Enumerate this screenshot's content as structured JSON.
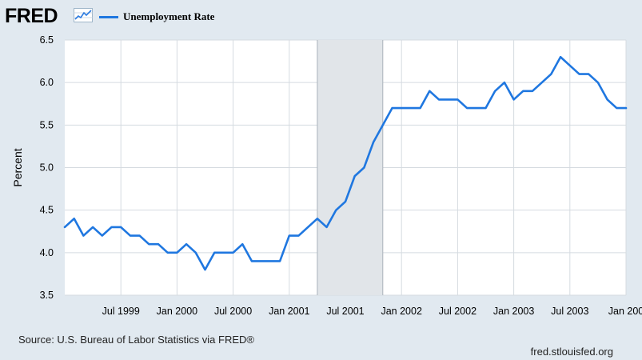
{
  "branding": {
    "logo_text": "FRED",
    "logo_icon": "trend-graph-icon"
  },
  "legend": {
    "series_name": "Unemployment Rate",
    "color": "#1f77e0"
  },
  "footer": {
    "source": "Source: U.S. Bureau of Labor Statistics via FRED®",
    "site": "fred.stlouisfed.org"
  },
  "chart_data": {
    "type": "line",
    "ylabel": "Percent",
    "ylim": [
      3.5,
      6.5
    ],
    "yticks": [
      3.5,
      4.0,
      4.5,
      5.0,
      5.5,
      6.0,
      6.5
    ],
    "ytick_labels": [
      "3.5",
      "4.0",
      "4.5",
      "5.0",
      "5.5",
      "6.0",
      "6.5"
    ],
    "x_range": [
      "1999-01",
      "2004-01"
    ],
    "xticks": [
      {
        "date": "1999-07",
        "label": "Jul 1999"
      },
      {
        "date": "2000-01",
        "label": "Jan 2000"
      },
      {
        "date": "2000-07",
        "label": "Jul 2000"
      },
      {
        "date": "2001-01",
        "label": "Jan 2001"
      },
      {
        "date": "2001-07",
        "label": "Jul 2001"
      },
      {
        "date": "2002-01",
        "label": "Jan 2002"
      },
      {
        "date": "2002-07",
        "label": "Jul 2002"
      },
      {
        "date": "2003-01",
        "label": "Jan 2003"
      },
      {
        "date": "2003-07",
        "label": "Jul 2003"
      },
      {
        "date": "2004-01",
        "label": "Jan 200"
      }
    ],
    "recession": {
      "start": "2001-04",
      "end": "2001-11",
      "color": "#e1e5e9"
    },
    "grid": true,
    "series": [
      {
        "name": "Unemployment Rate",
        "color": "#1f77e0",
        "x": [
          "1999-01",
          "1999-02",
          "1999-03",
          "1999-04",
          "1999-05",
          "1999-06",
          "1999-07",
          "1999-08",
          "1999-09",
          "1999-10",
          "1999-11",
          "1999-12",
          "2000-01",
          "2000-02",
          "2000-03",
          "2000-04",
          "2000-05",
          "2000-06",
          "2000-07",
          "2000-08",
          "2000-09",
          "2000-10",
          "2000-11",
          "2000-12",
          "2001-01",
          "2001-02",
          "2001-03",
          "2001-04",
          "2001-05",
          "2001-06",
          "2001-07",
          "2001-08",
          "2001-09",
          "2001-10",
          "2001-11",
          "2001-12",
          "2002-01",
          "2002-02",
          "2002-03",
          "2002-04",
          "2002-05",
          "2002-06",
          "2002-07",
          "2002-08",
          "2002-09",
          "2002-10",
          "2002-11",
          "2002-12",
          "2003-01",
          "2003-02",
          "2003-03",
          "2003-04",
          "2003-05",
          "2003-06",
          "2003-07",
          "2003-08",
          "2003-09",
          "2003-10",
          "2003-11",
          "2003-12",
          "2004-01"
        ],
        "values": [
          4.3,
          4.4,
          4.2,
          4.3,
          4.2,
          4.3,
          4.3,
          4.2,
          4.2,
          4.1,
          4.1,
          4.0,
          4.0,
          4.1,
          4.0,
          3.8,
          4.0,
          4.0,
          4.0,
          4.1,
          3.9,
          3.9,
          3.9,
          3.9,
          4.2,
          4.2,
          4.3,
          4.4,
          4.3,
          4.5,
          4.6,
          4.9,
          5.0,
          5.3,
          5.5,
          5.7,
          5.7,
          5.7,
          5.7,
          5.9,
          5.8,
          5.8,
          5.8,
          5.7,
          5.7,
          5.7,
          5.9,
          6.0,
          5.8,
          5.9,
          5.9,
          6.0,
          6.1,
          6.3,
          6.2,
          6.1,
          6.1,
          6.0,
          5.8,
          5.7,
          5.7
        ]
      }
    ]
  }
}
